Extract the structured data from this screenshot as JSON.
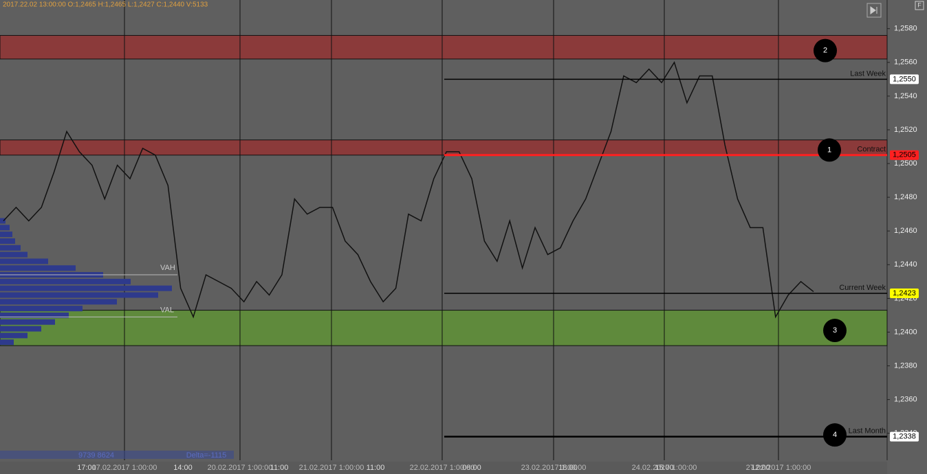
{
  "chart_data": {
    "type": "line",
    "header": "2017.22.02 13:00:00   O:1,2465   H:1,2465   L:1,2427   C:1,2440   V:5133",
    "values": [
      1.2466,
      1.2474,
      1.2466,
      1.2474,
      1.2495,
      1.2519,
      1.2507,
      1.2499,
      1.2479,
      1.2499,
      1.2491,
      1.2509,
      1.2505,
      1.2487,
      1.2426,
      1.2409,
      1.2434,
      1.243,
      1.2426,
      1.2418,
      1.243,
      1.2422,
      1.2434,
      1.2479,
      1.247,
      1.2474,
      1.2474,
      1.2454,
      1.2446,
      1.243,
      1.2418,
      1.2426,
      1.247,
      1.2466,
      1.2491,
      1.2507,
      1.2507,
      1.2491,
      1.2454,
      1.2442,
      1.2466,
      1.2438,
      1.2462,
      1.2446,
      1.245,
      1.2466,
      1.2479,
      1.2499,
      1.2519,
      1.2552,
      1.2548,
      1.2556,
      1.2548,
      1.256,
      1.2536,
      1.2552,
      1.2552,
      1.2511,
      1.2479,
      1.2462,
      1.2462,
      1.2409,
      1.2422,
      1.243,
      1.2424
    ],
    "color": "#111111",
    "ylim": [
      1.2324,
      1.2597
    ],
    "yticks": [
      {
        "value": 1.258,
        "label": "1,2580"
      },
      {
        "value": 1.256,
        "label": "1,2560"
      },
      {
        "value": 1.254,
        "label": "1,2540"
      },
      {
        "value": 1.252,
        "label": "1,2520"
      },
      {
        "value": 1.25,
        "label": "1,2500"
      },
      {
        "value": 1.248,
        "label": "1,2480"
      },
      {
        "value": 1.246,
        "label": "1,2460"
      },
      {
        "value": 1.244,
        "label": "1,2440"
      },
      {
        "value": 1.242,
        "label": "1,2420"
      },
      {
        "value": 1.24,
        "label": "1,2400"
      },
      {
        "value": 1.238,
        "label": "1,2380"
      },
      {
        "value": 1.236,
        "label": "1,2360"
      },
      {
        "value": 1.234,
        "label": "1,2340"
      }
    ],
    "time_labels": [
      "17:00",
      "14:00",
      "11:00",
      "11:00",
      "08:00",
      "18:00",
      "15:00",
      "12:00"
    ],
    "date_labels": [
      "17.02.2017 1:00:00",
      "20.02.2017 1:00:00",
      "21.02.2017 1:00:00",
      "22.02.2017 1:00:00",
      "23.02.2017 1:00:00",
      "24.02.2017 1:00:00",
      "27.02.2017 1:00:00"
    ],
    "zones": [
      {
        "from": 1.2562,
        "to": 1.2576,
        "color": "#8b3a3a"
      },
      {
        "from": 1.2505,
        "to": 1.2514,
        "color": "#8b3a3a"
      },
      {
        "from": 1.2392,
        "to": 1.2413,
        "color": "#5f8a3c"
      }
    ],
    "levels": [
      {
        "name": "Last Week",
        "value": 1.255,
        "value_label": "1,2550",
        "color": "#000000",
        "tag": "#ffffff"
      },
      {
        "name": "Contract",
        "value": 1.2505,
        "value_label": "1,2505",
        "color": "#ff2020",
        "tag": "#ff2020"
      },
      {
        "name": "Current Week",
        "value": 1.2423,
        "value_label": "1,2423",
        "color": "#000000",
        "tag": "#ffff00"
      },
      {
        "name": "Last Month",
        "value": 1.2338,
        "value_label": "1,2338",
        "color": "#000000",
        "tag": "#ffffff"
      }
    ],
    "markers": [
      {
        "label": "2",
        "value": 1.2567
      },
      {
        "label": "1",
        "value": 1.2508
      },
      {
        "label": "3",
        "value": 1.2401
      },
      {
        "label": "4",
        "value": 1.2339
      }
    ],
    "profile": {
      "color": "#2e3a8c",
      "prices": [
        1.2466,
        1.2462,
        1.2458,
        1.2454,
        1.245,
        1.2446,
        1.2442,
        1.2438,
        1.2434,
        1.243,
        1.2426,
        1.2422,
        1.2418,
        1.2414,
        1.241,
        1.2406,
        1.2402,
        1.2398,
        1.2394
      ],
      "volumes": [
        8,
        14,
        18,
        22,
        30,
        40,
        70,
        110,
        150,
        190,
        250,
        230,
        170,
        120,
        100,
        80,
        60,
        40,
        20
      ]
    },
    "vah": {
      "label": "VAH",
      "value": 1.2434
    },
    "val": {
      "label": "VAL",
      "value": 1.2409
    },
    "footer_left": "9739 8624",
    "footer_delta": "Delta=-1115"
  }
}
